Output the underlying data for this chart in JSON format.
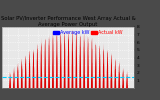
{
  "title": "Solar PV/Inverter Performance West Array Actual & Average Power Output",
  "title_fontsize": 3.8,
  "fig_bg_color": "#4a4a4a",
  "plot_bg_color": "#e8e8e8",
  "bar_color": "#dd0000",
  "avg_line_color": "#00ccff",
  "grid_color": "#ffffff",
  "ylim": [
    0,
    8
  ],
  "yticks": [
    1,
    2,
    3,
    4,
    5,
    6,
    7,
    8
  ],
  "ylabel_fontsize": 3.2,
  "xlabel_fontsize": 2.8,
  "legend_actual": "Actual kW",
  "legend_avg": "Average kW",
  "legend_fontsize": 3.5,
  "num_days": 31,
  "pts_per_day": 48,
  "avg_value": 1.4,
  "seasonal_base": 2.0,
  "seasonal_amp": 5.5,
  "noise_std": 0.3
}
